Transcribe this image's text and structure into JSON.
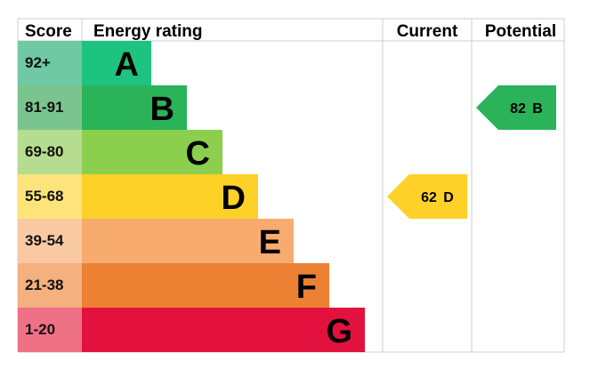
{
  "header": {
    "score": "Score",
    "energy_rating": "Energy rating",
    "current": "Current",
    "potential": "Potential"
  },
  "chart_data": {
    "type": "bar",
    "categories": [
      "A",
      "B",
      "C",
      "D",
      "E",
      "F",
      "G"
    ],
    "score_ranges": [
      "92+",
      "81-91",
      "69-80",
      "55-68",
      "39-54",
      "21-38",
      "1-20"
    ],
    "band_colors": [
      "#1dc47f",
      "#2bb359",
      "#8ccf4f",
      "#fdd128",
      "#f7ab6f",
      "#ec8134",
      "#e3113e"
    ],
    "score_cell_colors": [
      "#6ec9a4",
      "#7ac48f",
      "#b6dd8f",
      "#fde47a",
      "#f9c9a2",
      "#f4b07e",
      "#ee7185"
    ],
    "current": {
      "value": 62,
      "band": "D",
      "color": "#fdd128"
    },
    "potential": {
      "value": 82,
      "band": "B",
      "color": "#2bb359"
    }
  }
}
